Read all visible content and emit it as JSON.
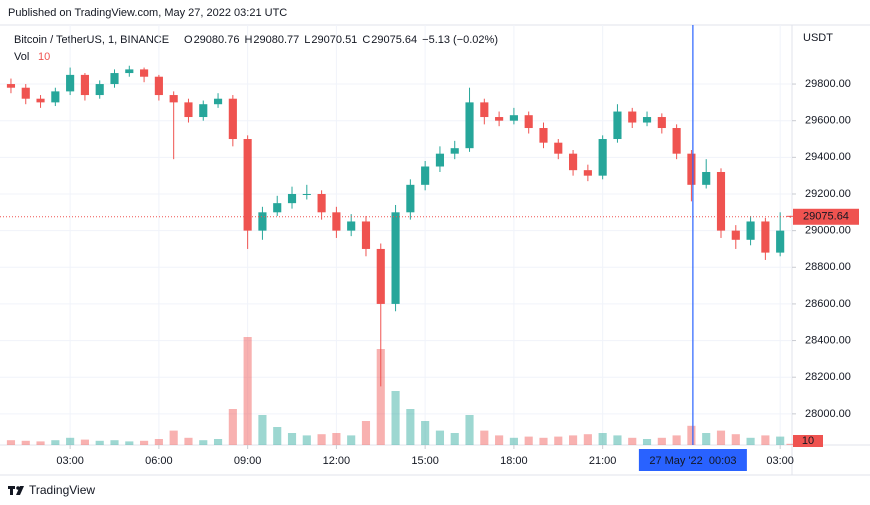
{
  "published": "Published on TradingView.com, May 27, 2022 03:21 UTC",
  "brand": "TradingView",
  "chart_data": {
    "type": "candlestick",
    "symbol": "Bitcoin / TetherUS, 1, BINANCE",
    "ohlc_letters": [
      "O",
      "H",
      "L",
      "C"
    ],
    "change": "−5.13 (−0.02%)",
    "volume_label": "Vol",
    "y_axis_label": "USDT",
    "x": [
      1,
      1.5,
      2,
      2.5,
      3,
      3.5,
      4,
      4.5,
      5,
      5.5,
      6,
      6.5,
      7,
      7.5,
      8,
      8.5,
      9,
      9.5,
      10,
      10.5,
      11,
      11.5,
      12,
      12.5,
      13,
      13.5,
      14,
      14.5,
      15,
      15.5,
      16,
      16.5,
      17,
      17.5,
      18,
      18.5,
      19,
      19.5,
      20,
      20.5,
      21,
      21.5,
      22,
      22.5,
      23,
      23.5,
      24,
      24.5,
      25,
      25.5,
      26,
      26.5,
      27,
      27.35
    ],
    "open": [
      29800,
      29780,
      29720,
      29700,
      29760,
      29850,
      29740,
      29800,
      29860,
      29880,
      29840,
      29740,
      29700,
      29620,
      29690,
      29720,
      29500,
      29000,
      29100,
      29150,
      29200,
      29200,
      29100,
      29000,
      29050,
      28900,
      28600,
      29100,
      29250,
      29350,
      29420,
      29450,
      29700,
      29620,
      29600,
      29630,
      29560,
      29480,
      29420,
      29330,
      29300,
      29500,
      29650,
      29590,
      29620,
      29560,
      29420,
      29250,
      29320,
      29000,
      28950,
      29050,
      28880,
      29080.76
    ],
    "high": [
      29830,
      29800,
      29740,
      29780,
      29890,
      29860,
      29820,
      29880,
      29900,
      29890,
      29850,
      29760,
      29720,
      29710,
      29750,
      29740,
      29520,
      29130,
      29190,
      29240,
      29250,
      29220,
      29130,
      29090,
      29080,
      28930,
      29140,
      29280,
      29380,
      29460,
      29490,
      29780,
      29720,
      29650,
      29670,
      29650,
      29590,
      29500,
      29440,
      29360,
      29520,
      29690,
      29670,
      29650,
      29640,
      29580,
      29440,
      29390,
      29340,
      29030,
      29080,
      29070,
      29100,
      29080.77
    ],
    "low": [
      29750,
      29690,
      29670,
      29680,
      29740,
      29710,
      29720,
      29780,
      29840,
      29810,
      29710,
      29390,
      29590,
      29600,
      29670,
      29460,
      28900,
      28950,
      29080,
      29120,
      29170,
      29060,
      28960,
      28970,
      28860,
      28150,
      28560,
      29060,
      29220,
      29320,
      29390,
      29430,
      29580,
      29570,
      29580,
      29530,
      29450,
      29390,
      29300,
      29270,
      29280,
      29480,
      29560,
      29570,
      29530,
      29390,
      29160,
      29230,
      28960,
      28900,
      28920,
      28840,
      28860,
      29070.51
    ],
    "close": [
      29780,
      29720,
      29700,
      29760,
      29850,
      29740,
      29800,
      29860,
      29880,
      29840,
      29740,
      29700,
      29620,
      29690,
      29720,
      29500,
      29000,
      29100,
      29150,
      29200,
      29200,
      29100,
      29000,
      29050,
      28900,
      28600,
      29100,
      29250,
      29350,
      29420,
      29450,
      29700,
      29620,
      29600,
      29630,
      29560,
      29480,
      29420,
      29330,
      29300,
      29500,
      29650,
      29590,
      29620,
      29560,
      29420,
      29250,
      29320,
      29000,
      28950,
      29050,
      28880,
      29000,
      29075.64
    ],
    "volume": [
      40,
      35,
      30,
      40,
      60,
      45,
      35,
      40,
      30,
      35,
      50,
      120,
      60,
      40,
      50,
      300,
      900,
      250,
      150,
      100,
      80,
      90,
      100,
      80,
      200,
      800,
      450,
      300,
      200,
      120,
      100,
      250,
      120,
      80,
      60,
      70,
      60,
      70,
      80,
      90,
      100,
      80,
      60,
      50,
      60,
      80,
      160,
      100,
      120,
      90,
      60,
      80,
      70,
      10
    ],
    "up_color": "#26a69a",
    "down_color": "#ef5350",
    "xlim": [
      0.9,
      27.4
    ],
    "xticks": [
      {
        "value": 3,
        "label": "03:00"
      },
      {
        "value": 6,
        "label": "06:00"
      },
      {
        "value": 9,
        "label": "09:00"
      },
      {
        "value": 12,
        "label": "12:00"
      },
      {
        "value": 15,
        "label": "15:00"
      },
      {
        "value": 18,
        "label": "18:00"
      },
      {
        "value": 21,
        "label": "21:00"
      },
      {
        "value": 27,
        "label": "03:00"
      }
    ],
    "ylim": [
      27830,
      30095
    ],
    "yticks": [
      {
        "value": 28000,
        "label": "28000.00"
      },
      {
        "value": 28200,
        "label": "28200.00"
      },
      {
        "value": 28400,
        "label": "28400.00"
      },
      {
        "value": 28600,
        "label": "28600.00"
      },
      {
        "value": 28800,
        "label": "28800.00"
      },
      {
        "value": 29000,
        "label": "29000.00"
      },
      {
        "value": 29200,
        "label": "29200.00"
      },
      {
        "value": 29400,
        "label": "29400.00"
      },
      {
        "value": 29600,
        "label": "29600.00"
      },
      {
        "value": 29800,
        "label": "29800.00"
      }
    ],
    "volume_ylim": [
      0,
      1000
    ],
    "grid": true,
    "crosshair": {
      "x": 24.05,
      "label": "27 May '22  00:03",
      "color": "#2962ff"
    }
  }
}
